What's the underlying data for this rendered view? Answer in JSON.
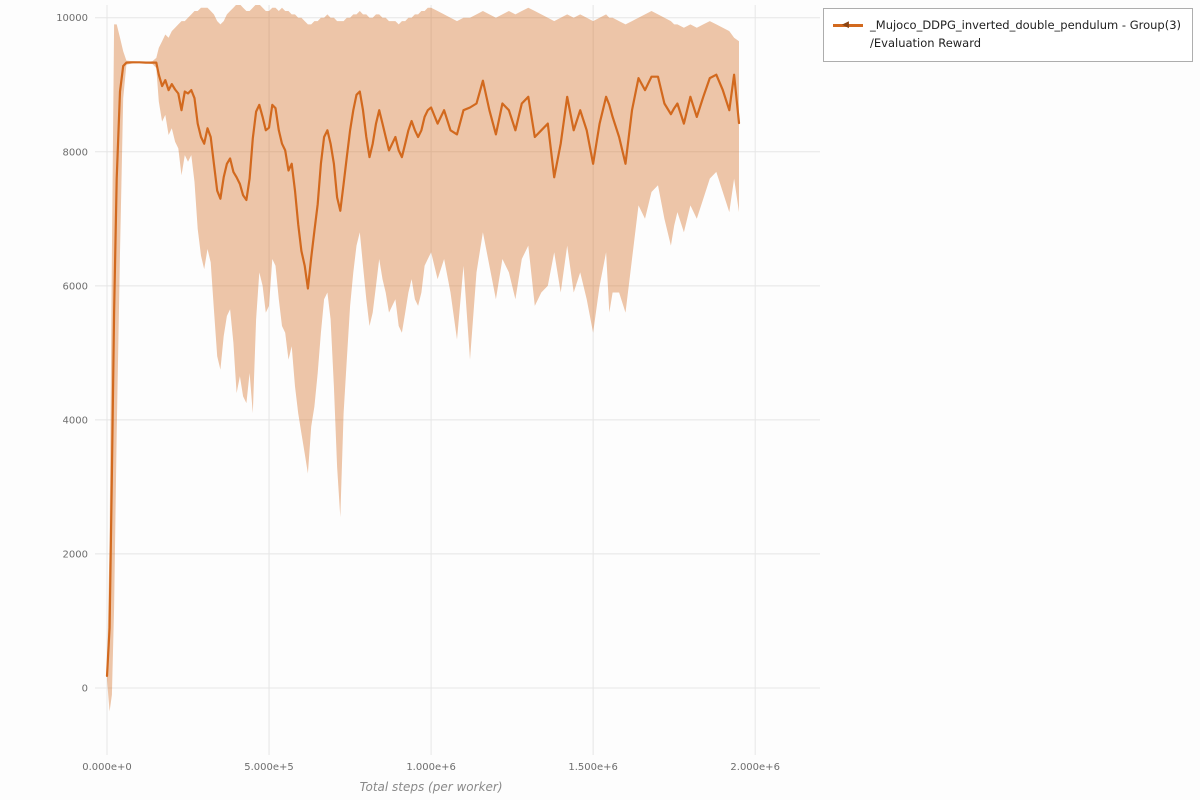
{
  "page": {
    "background": "#fdfdfd"
  },
  "legend": {
    "series_label": "_Mujoco_DDPG_inverted_double_pendulum - Group(3)",
    "metric_label": "/Evaluation Reward",
    "marker_glyph": "◀"
  },
  "colors": {
    "grid": "#e6e6e6",
    "tick_text": "#6e6e6e",
    "axis_title": "#8a8a8a",
    "legend_border": "#adadad"
  },
  "chart_data": {
    "type": "line",
    "title": "",
    "xlabel": "Total steps (per worker)",
    "ylabel": "",
    "grid": true,
    "legend_position": "top-right-outside",
    "xlim": [
      -37000,
      2200000
    ],
    "ylim": [
      -1000,
      10190
    ],
    "x_ticks": [
      {
        "value": 0,
        "label": "0.000e+0"
      },
      {
        "value": 500000,
        "label": "5.000e+5"
      },
      {
        "value": 1000000,
        "label": "1.000e+6"
      },
      {
        "value": 1500000,
        "label": "1.500e+6"
      },
      {
        "value": 2000000,
        "label": "2.000e+6"
      }
    ],
    "y_ticks": [
      0,
      2000,
      4000,
      6000,
      8000,
      10000
    ],
    "series": [
      {
        "name": "_Mujoco_DDPG_inverted_double_pendulum - Group(3) /Evaluation Reward",
        "color": "#d2691e",
        "marker_color": "#8b4513",
        "band_opacity": 0.38,
        "points_format": [
          "x",
          "band_low",
          "mean",
          "band_high"
        ],
        "points": [
          [
            0,
            120,
            180,
            260
          ],
          [
            8000,
            -350,
            900,
            2200
          ],
          [
            15000,
            -100,
            3200,
            6500
          ],
          [
            22000,
            1200,
            5600,
            9900
          ],
          [
            30000,
            3800,
            7600,
            9900
          ],
          [
            40000,
            6500,
            8900,
            9700
          ],
          [
            50000,
            8800,
            9280,
            9500
          ],
          [
            60000,
            9300,
            9330,
            9360
          ],
          [
            80000,
            9320,
            9335,
            9350
          ],
          [
            100000,
            9325,
            9335,
            9345
          ],
          [
            120000,
            9320,
            9330,
            9340
          ],
          [
            140000,
            9310,
            9330,
            9350
          ],
          [
            152000,
            9250,
            9330,
            9400
          ],
          [
            160000,
            8750,
            9150,
            9550
          ],
          [
            170000,
            8450,
            8980,
            9650
          ],
          [
            180000,
            8550,
            9070,
            9750
          ],
          [
            190000,
            8250,
            8920,
            9700
          ],
          [
            200000,
            8350,
            9010,
            9800
          ],
          [
            210000,
            8150,
            8930,
            9850
          ],
          [
            220000,
            8050,
            8870,
            9900
          ],
          [
            230000,
            7650,
            8620,
            9950
          ],
          [
            240000,
            7950,
            8900,
            9950
          ],
          [
            250000,
            7850,
            8870,
            10000
          ],
          [
            260000,
            7950,
            8920,
            10050
          ],
          [
            270000,
            7550,
            8800,
            10100
          ],
          [
            280000,
            6850,
            8420,
            10100
          ],
          [
            290000,
            6450,
            8220,
            10150
          ],
          [
            300000,
            6250,
            8120,
            10150
          ],
          [
            310000,
            6550,
            8350,
            10150
          ],
          [
            320000,
            6350,
            8220,
            10100
          ],
          [
            330000,
            5650,
            7820,
            10050
          ],
          [
            340000,
            4950,
            7420,
            9950
          ],
          [
            350000,
            4750,
            7300,
            9900
          ],
          [
            360000,
            5250,
            7620,
            9950
          ],
          [
            370000,
            5550,
            7820,
            10050
          ],
          [
            380000,
            5650,
            7900,
            10100
          ],
          [
            390000,
            5150,
            7700,
            10150
          ],
          [
            400000,
            4400,
            7620,
            10200
          ],
          [
            410000,
            4650,
            7520,
            10200
          ],
          [
            420000,
            4350,
            7350,
            10150
          ],
          [
            430000,
            4250,
            7280,
            10100
          ],
          [
            440000,
            4700,
            7600,
            10100
          ],
          [
            450000,
            4100,
            8200,
            10150
          ],
          [
            460000,
            5500,
            8600,
            10200
          ],
          [
            470000,
            6200,
            8700,
            10200
          ],
          [
            480000,
            6000,
            8520,
            10150
          ],
          [
            490000,
            5600,
            8320,
            10100
          ],
          [
            500000,
            5700,
            8360,
            10100
          ],
          [
            510000,
            6400,
            8700,
            10150
          ],
          [
            520000,
            6300,
            8650,
            10150
          ],
          [
            530000,
            5800,
            8320,
            10100
          ],
          [
            540000,
            5400,
            8120,
            10150
          ],
          [
            550000,
            5300,
            8020,
            10100
          ],
          [
            560000,
            4900,
            7720,
            10100
          ],
          [
            570000,
            5100,
            7820,
            10050
          ],
          [
            580000,
            4500,
            7420,
            10050
          ],
          [
            590000,
            4100,
            6920,
            10000
          ],
          [
            600000,
            3800,
            6520,
            10000
          ],
          [
            610000,
            3500,
            6300,
            9950
          ],
          [
            620000,
            3200,
            5960,
            9900
          ],
          [
            630000,
            3900,
            6420,
            9900
          ],
          [
            640000,
            4200,
            6820,
            9950
          ],
          [
            650000,
            4700,
            7220,
            9950
          ],
          [
            660000,
            5300,
            7820,
            10000
          ],
          [
            670000,
            5800,
            8220,
            10000
          ],
          [
            680000,
            5900,
            8320,
            10050
          ],
          [
            690000,
            5500,
            8120,
            10000
          ],
          [
            700000,
            4500,
            7820,
            10000
          ],
          [
            710000,
            3300,
            7320,
            9950
          ],
          [
            720000,
            2550,
            7120,
            9950
          ],
          [
            730000,
            4100,
            7520,
            9950
          ],
          [
            740000,
            4900,
            7920,
            10000
          ],
          [
            750000,
            5700,
            8320,
            10000
          ],
          [
            760000,
            6200,
            8620,
            10050
          ],
          [
            770000,
            6600,
            8850,
            10050
          ],
          [
            780000,
            6800,
            8900,
            10100
          ],
          [
            790000,
            6300,
            8620,
            10050
          ],
          [
            800000,
            5800,
            8220,
            10050
          ],
          [
            810000,
            5400,
            7920,
            10000
          ],
          [
            820000,
            5600,
            8120,
            10000
          ],
          [
            830000,
            6000,
            8420,
            10050
          ],
          [
            840000,
            6400,
            8620,
            10050
          ],
          [
            850000,
            6100,
            8420,
            10000
          ],
          [
            860000,
            5900,
            8220,
            10000
          ],
          [
            870000,
            5600,
            8020,
            9950
          ],
          [
            880000,
            5700,
            8120,
            9950
          ],
          [
            890000,
            5800,
            8220,
            9950
          ],
          [
            900000,
            5400,
            8020,
            9900
          ],
          [
            910000,
            5300,
            7920,
            9950
          ],
          [
            920000,
            5600,
            8120,
            9950
          ],
          [
            930000,
            5900,
            8320,
            10000
          ],
          [
            940000,
            6100,
            8460,
            10000
          ],
          [
            950000,
            5800,
            8320,
            10050
          ],
          [
            960000,
            5700,
            8220,
            10050
          ],
          [
            970000,
            5900,
            8320,
            10100
          ],
          [
            980000,
            6300,
            8520,
            10100
          ],
          [
            990000,
            6400,
            8620,
            10150
          ],
          [
            1000000,
            6500,
            8660,
            10150
          ],
          [
            1020000,
            6100,
            8420,
            10100
          ],
          [
            1040000,
            6400,
            8620,
            10050
          ],
          [
            1060000,
            5900,
            8320,
            10000
          ],
          [
            1080000,
            5200,
            8260,
            9950
          ],
          [
            1100000,
            6300,
            8620,
            10000
          ],
          [
            1120000,
            4900,
            8660,
            10000
          ],
          [
            1140000,
            6200,
            8720,
            10050
          ],
          [
            1160000,
            6800,
            9060,
            10100
          ],
          [
            1180000,
            6300,
            8620,
            10050
          ],
          [
            1200000,
            5800,
            8260,
            10000
          ],
          [
            1220000,
            6400,
            8720,
            10050
          ],
          [
            1240000,
            6200,
            8620,
            10100
          ],
          [
            1260000,
            5800,
            8320,
            10050
          ],
          [
            1280000,
            6400,
            8720,
            10100
          ],
          [
            1300000,
            6600,
            8820,
            10150
          ],
          [
            1320000,
            5700,
            8220,
            10100
          ],
          [
            1340000,
            5900,
            8320,
            10050
          ],
          [
            1360000,
            6000,
            8420,
            10000
          ],
          [
            1380000,
            6500,
            7620,
            9950
          ],
          [
            1400000,
            5900,
            8120,
            10000
          ],
          [
            1420000,
            6600,
            8820,
            10050
          ],
          [
            1440000,
            5900,
            8320,
            10000
          ],
          [
            1460000,
            6200,
            8620,
            10050
          ],
          [
            1480000,
            5800,
            8320,
            10000
          ],
          [
            1500000,
            5300,
            7820,
            9950
          ],
          [
            1520000,
            6000,
            8420,
            10000
          ],
          [
            1540000,
            6500,
            8820,
            10050
          ],
          [
            1550000,
            5600,
            8700,
            10000
          ],
          [
            1560000,
            5900,
            8520,
            10000
          ],
          [
            1580000,
            5900,
            8220,
            9950
          ],
          [
            1600000,
            5600,
            7820,
            9900
          ],
          [
            1620000,
            6400,
            8620,
            9950
          ],
          [
            1640000,
            7200,
            9100,
            10000
          ],
          [
            1660000,
            7000,
            8920,
            10050
          ],
          [
            1680000,
            7400,
            9120,
            10100
          ],
          [
            1700000,
            7500,
            9120,
            10050
          ],
          [
            1720000,
            7000,
            8720,
            10000
          ],
          [
            1740000,
            6600,
            8560,
            9950
          ],
          [
            1750000,
            6900,
            8650,
            9900
          ],
          [
            1760000,
            7100,
            8720,
            9900
          ],
          [
            1780000,
            6800,
            8420,
            9850
          ],
          [
            1800000,
            7200,
            8820,
            9900
          ],
          [
            1820000,
            7000,
            8520,
            9850
          ],
          [
            1840000,
            7300,
            8820,
            9900
          ],
          [
            1860000,
            7600,
            9100,
            9950
          ],
          [
            1880000,
            7700,
            9150,
            9900
          ],
          [
            1900000,
            7400,
            8920,
            9850
          ],
          [
            1920000,
            7100,
            8620,
            9800
          ],
          [
            1935000,
            7600,
            9150,
            9700
          ],
          [
            1950000,
            7100,
            8430,
            9650
          ]
        ]
      }
    ]
  }
}
